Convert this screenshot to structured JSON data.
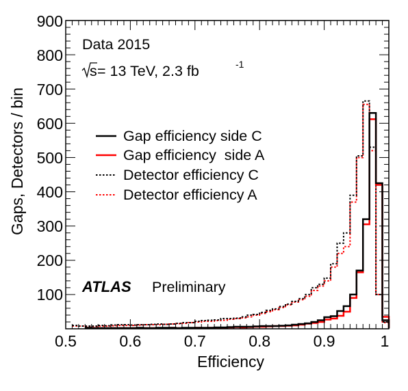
{
  "chart_data": {
    "type": "histogram",
    "xlabel": "Efficiency",
    "ylabel": "Gaps, Detectors / bin",
    "xlim": [
      0.5,
      1.0
    ],
    "ylim": [
      0,
      900
    ],
    "x_ticks": [
      "0.5",
      "0.6",
      "0.7",
      "0.8",
      "0.9",
      "1"
    ],
    "y_ticks": [
      "100",
      "200",
      "300",
      "400",
      "500",
      "600",
      "700",
      "800",
      "900"
    ],
    "y_tick_values": [
      100,
      200,
      300,
      400,
      500,
      600,
      700,
      800,
      900
    ],
    "x_tick_values": [
      0.5,
      0.6,
      0.7,
      0.8,
      0.9,
      1.0
    ],
    "bin_width": 0.01,
    "bin_edges_start": 0.5,
    "annotations": {
      "data_label": "Data 2015",
      "energy_sqrt": "s",
      "energy_rest": "= 13 TeV,  2.3 fb",
      "energy_exp": "-1",
      "atlas": "ATLAS",
      "preliminary": "Preliminary"
    },
    "legend_position": "upper-left",
    "series": [
      {
        "name": "Gap efficiency side C",
        "color": "#000000",
        "style": "solid",
        "values": [
          3,
          2,
          2,
          2,
          2,
          2,
          2,
          2,
          3,
          2,
          2,
          3,
          3,
          3,
          2,
          3,
          3,
          3,
          3,
          3,
          4,
          4,
          5,
          6,
          6,
          6,
          7,
          8,
          8,
          8,
          9,
          10,
          12,
          14,
          16,
          20,
          25,
          34,
          37,
          52,
          66,
          100,
          170,
          320,
          630,
          425,
          25,
          1
        ]
      },
      {
        "name": "Gap efficiency  side A",
        "color": "#ff0000",
        "style": "solid",
        "values": [
          2,
          2,
          2,
          2,
          2,
          2,
          2,
          2,
          2,
          2,
          2,
          2,
          2,
          3,
          2,
          2,
          2,
          3,
          2,
          3,
          3,
          3,
          4,
          5,
          4,
          5,
          6,
          6,
          7,
          8,
          8,
          9,
          10,
          12,
          15,
          17,
          20,
          27,
          30,
          38,
          50,
          90,
          165,
          305,
          612,
          420,
          35,
          2
        ]
      },
      {
        "name": "Detector efficiency C",
        "color": "#000000",
        "style": "dotted",
        "values": [
          10,
          8,
          8,
          8,
          10,
          9,
          11,
          12,
          12,
          11,
          12,
          12,
          13,
          14,
          13,
          14,
          16,
          18,
          18,
          22,
          24,
          25,
          26,
          30,
          30,
          31,
          35,
          40,
          42,
          48,
          54,
          58,
          65,
          72,
          80,
          88,
          100,
          120,
          130,
          148,
          190,
          250,
          280,
          390,
          505,
          665,
          530,
          100,
          20,
          2
        ]
      },
      {
        "name": "Detector efficiency A",
        "color": "#ff0000",
        "style": "dotted",
        "values": [
          8,
          8,
          7,
          7,
          8,
          8,
          9,
          10,
          10,
          10,
          11,
          12,
          12,
          12,
          13,
          14,
          15,
          16,
          18,
          20,
          22,
          22,
          24,
          25,
          28,
          30,
          32,
          35,
          40,
          45,
          50,
          56,
          62,
          70,
          78,
          85,
          95,
          112,
          125,
          140,
          180,
          220,
          240,
          370,
          500,
          655,
          520,
          100,
          18,
          2
        ]
      }
    ]
  }
}
